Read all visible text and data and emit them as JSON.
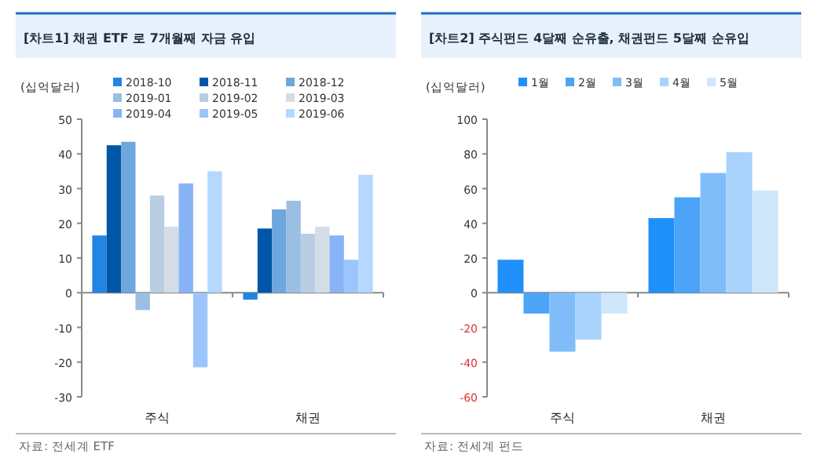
{
  "chart_data": [
    {
      "type": "bar",
      "title": "[차트1] 채권 ETF 로 7개월째 자금 유입",
      "ylabel": "(십억달러)",
      "categories": [
        "주식",
        "채권"
      ],
      "legend": "top",
      "ylim": [
        -30,
        50
      ],
      "yticks": [
        -30,
        -20,
        -10,
        0,
        10,
        20,
        30,
        40,
        50
      ],
      "series": [
        {
          "name": "2018-10",
          "color": "#2185e3",
          "values": [
            16.5,
            -2
          ]
        },
        {
          "name": "2018-11",
          "color": "#0057a8",
          "values": [
            42.5,
            18.5
          ]
        },
        {
          "name": "2018-12",
          "color": "#6ea6de",
          "values": [
            43.5,
            24
          ]
        },
        {
          "name": "2019-01",
          "color": "#9abfe2",
          "values": [
            -5,
            26.5
          ]
        },
        {
          "name": "2019-02",
          "color": "#b9cde3",
          "values": [
            28,
            17
          ]
        },
        {
          "name": "2019-03",
          "color": "#d4dce6",
          "values": [
            19,
            19
          ]
        },
        {
          "name": "2019-04",
          "color": "#88b3f7",
          "values": [
            31.5,
            16.5
          ]
        },
        {
          "name": "2019-05",
          "color": "#9cc6fb",
          "values": [
            -21.5,
            9.5
          ]
        },
        {
          "name": "2019-06",
          "color": "#b4d8ff",
          "values": [
            35,
            34
          ]
        }
      ],
      "annotations": [
        "자료: 전세계 ETF"
      ]
    },
    {
      "type": "bar",
      "title": "[차트2] 주식펀드 4달째 순유출, 채권펀드 5달째 순유입",
      "ylabel": "(십억달러)",
      "categories": [
        "주식",
        "채권"
      ],
      "legend": "top",
      "ylim": [
        -60,
        100
      ],
      "yticks": [
        -60,
        -40,
        -20,
        0,
        20,
        40,
        60,
        80,
        100
      ],
      "series": [
        {
          "name": "1월",
          "color": "#1f8ffa",
          "values": [
            19,
            43
          ]
        },
        {
          "name": "2월",
          "color": "#4ba4f6",
          "values": [
            -12,
            55
          ]
        },
        {
          "name": "3월",
          "color": "#80bdf8",
          "values": [
            -34,
            69
          ]
        },
        {
          "name": "4월",
          "color": "#a9d3fb",
          "values": [
            -27,
            81
          ]
        },
        {
          "name": "5월",
          "color": "#d0e6fb",
          "values": [
            -12,
            59
          ]
        }
      ],
      "annotations": [
        "자료: 전세계 펀드"
      ]
    }
  ]
}
